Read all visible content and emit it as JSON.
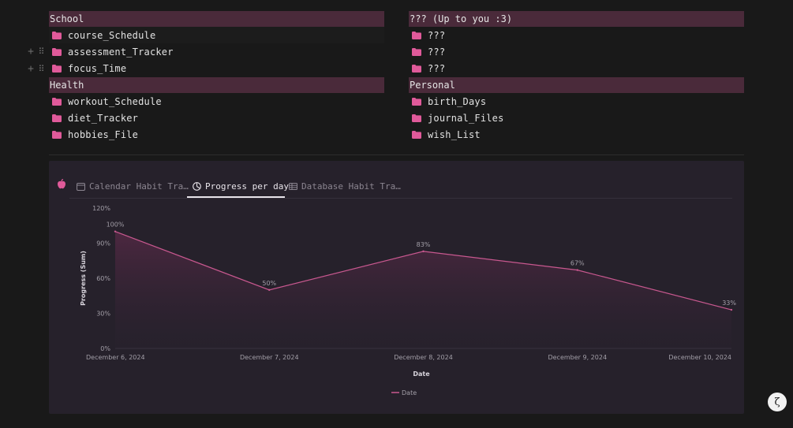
{
  "sections": {
    "school": {
      "title": "School",
      "items": [
        "course_Schedule",
        "assessment_Tracker",
        "focus_Time"
      ]
    },
    "up_to_you": {
      "title": "??? (Up to you :3)",
      "items": [
        "???",
        "???",
        "???"
      ]
    },
    "health": {
      "title": "Health",
      "items": [
        "workout_Schedule",
        "diet_Tracker",
        "hobbies_File"
      ]
    },
    "personal": {
      "title": "Personal",
      "items": [
        "birth_Days",
        "journal_Files",
        "wish_List"
      ]
    }
  },
  "tabs": [
    {
      "label": "Calendar Habit Tra…",
      "icon": "calendar-icon",
      "active": false
    },
    {
      "label": "Progress per day",
      "icon": "clock-chart-icon",
      "active": true
    },
    {
      "label": "Database Habit Tra…",
      "icon": "table-icon",
      "active": false
    }
  ],
  "colors": {
    "accent": "#e05a9a",
    "header_bg": "#4a2a3a",
    "panel_bg": "#26212b",
    "line": "#c8588f"
  },
  "chart_data": {
    "type": "area",
    "categories": [
      "December 6, 2024",
      "December 7, 2024",
      "December 8, 2024",
      "December 9, 2024",
      "December 10, 2024"
    ],
    "series": [
      {
        "name": "Date",
        "values": [
          100,
          50,
          83,
          67,
          33
        ]
      }
    ],
    "data_labels": [
      "100%",
      "50%",
      "83%",
      "67%",
      "33%"
    ],
    "yticks": [
      "0%",
      "30%",
      "60%",
      "90%",
      "120%"
    ],
    "ylim": [
      0,
      120
    ],
    "xlabel": "Date",
    "ylabel": "Progress (Sum)",
    "legend_position": "bottom",
    "grid": false
  },
  "badge_label": "ζ"
}
